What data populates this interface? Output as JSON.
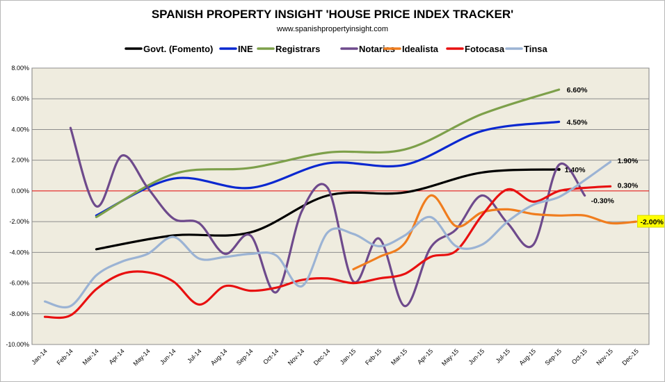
{
  "header": {
    "title": "SPANISH PROPERTY INSIGHT 'HOUSE PRICE INDEX TRACKER'",
    "subtitle": "www.spanishpropertyinsight.com"
  },
  "chart_data": {
    "type": "line",
    "title": "SPANISH PROPERTY INSIGHT 'HOUSE PRICE INDEX TRACKER'",
    "subtitle": "www.spanishpropertyinsight.com",
    "xlabel": "",
    "ylabel": "",
    "ylim": [
      -10,
      8
    ],
    "y_ticks": [
      "8.00%",
      "6.00%",
      "4.00%",
      "2.00%",
      "0.00%",
      "-2.00%",
      "-4.00%",
      "-6.00%",
      "-8.00%",
      "-10.00%"
    ],
    "y_tick_values": [
      8,
      6,
      4,
      2,
      0,
      -2,
      -4,
      -6,
      -8,
      -10
    ],
    "categories": [
      "Jan-14",
      "Feb-14",
      "Mar-14",
      "Apr-14",
      "May-14",
      "Jun-14",
      "Jul-14",
      "Aug-14",
      "Sep-14",
      "Oct-14",
      "Nov-14",
      "Dec-14",
      "Jan-15",
      "Feb-15",
      "Mar-15",
      "Apr-15",
      "May-15",
      "Jun-15",
      "Jul-15",
      "Aug-15",
      "Sep-15",
      "Oct-15",
      "Nov-15",
      "Dec-15"
    ],
    "grid": true,
    "legend_position": "top",
    "plot_background": "#efecdf",
    "zero_line_color": "#e00000",
    "series": [
      {
        "name": "Govt. (Fomento)",
        "color": "#000000",
        "values": [
          null,
          null,
          -3.8,
          null,
          null,
          -2.9,
          null,
          null,
          -2.7,
          null,
          null,
          -0.3,
          null,
          null,
          -0.1,
          null,
          null,
          1.2,
          null,
          null,
          1.4,
          null,
          null,
          null
        ],
        "end_label": "1.40%"
      },
      {
        "name": "INE",
        "color": "#0a28d0",
        "values": [
          null,
          null,
          -1.6,
          null,
          null,
          0.8,
          null,
          null,
          0.2,
          null,
          null,
          1.8,
          null,
          null,
          1.7,
          null,
          null,
          3.9,
          null,
          null,
          4.5,
          null,
          null,
          null
        ],
        "end_label": "4.50%"
      },
      {
        "name": "Registrars",
        "color": "#7da04a",
        "values": [
          null,
          null,
          -1.7,
          null,
          null,
          1.1,
          null,
          null,
          1.5,
          null,
          null,
          2.5,
          null,
          null,
          2.7,
          null,
          null,
          5.0,
          null,
          null,
          6.6,
          null,
          null,
          null
        ],
        "end_label": "6.60%"
      },
      {
        "name": "Notaries",
        "color": "#6e4a8c",
        "values": [
          null,
          4.1,
          -1.0,
          2.3,
          0.2,
          -1.8,
          -2.1,
          -4.1,
          -2.9,
          -6.6,
          -1.3,
          0.2,
          -5.9,
          -3.1,
          -7.5,
          -3.7,
          -2.5,
          -0.3,
          -2.1,
          -3.5,
          1.7,
          -0.3,
          null,
          null
        ],
        "end_label": "-0.30%"
      },
      {
        "name": "Idealista",
        "color": "#f07d1e",
        "values": [
          null,
          null,
          null,
          null,
          null,
          null,
          null,
          null,
          null,
          null,
          null,
          null,
          -5.1,
          -4.3,
          -3.4,
          -0.3,
          -2.3,
          -1.4,
          -1.2,
          -1.5,
          -1.6,
          -1.6,
          -2.1,
          -2.0
        ],
        "end_label": "-2.00%"
      },
      {
        "name": "Fotocasa",
        "color": "#e81010",
        "values": [
          -8.2,
          -8.1,
          -6.4,
          -5.4,
          -5.3,
          -5.9,
          -7.4,
          -6.2,
          -6.5,
          -6.3,
          -5.8,
          -5.7,
          -6.0,
          -5.7,
          -5.4,
          -4.3,
          -3.9,
          -1.6,
          0.1,
          -0.7,
          0.0,
          0.2,
          0.3,
          null
        ],
        "end_label": "0.30%"
      },
      {
        "name": "Tinsa",
        "color": "#9bb3d4",
        "values": [
          -7.2,
          -7.5,
          -5.5,
          -4.6,
          -4.1,
          -3.0,
          -4.4,
          -4.3,
          -4.1,
          -4.2,
          -6.2,
          -2.7,
          -2.8,
          -3.6,
          -2.9,
          -1.7,
          -3.6,
          -3.5,
          -2.0,
          -0.9,
          -0.4,
          0.7,
          1.9,
          null
        ],
        "end_label": "1.90%"
      }
    ]
  }
}
